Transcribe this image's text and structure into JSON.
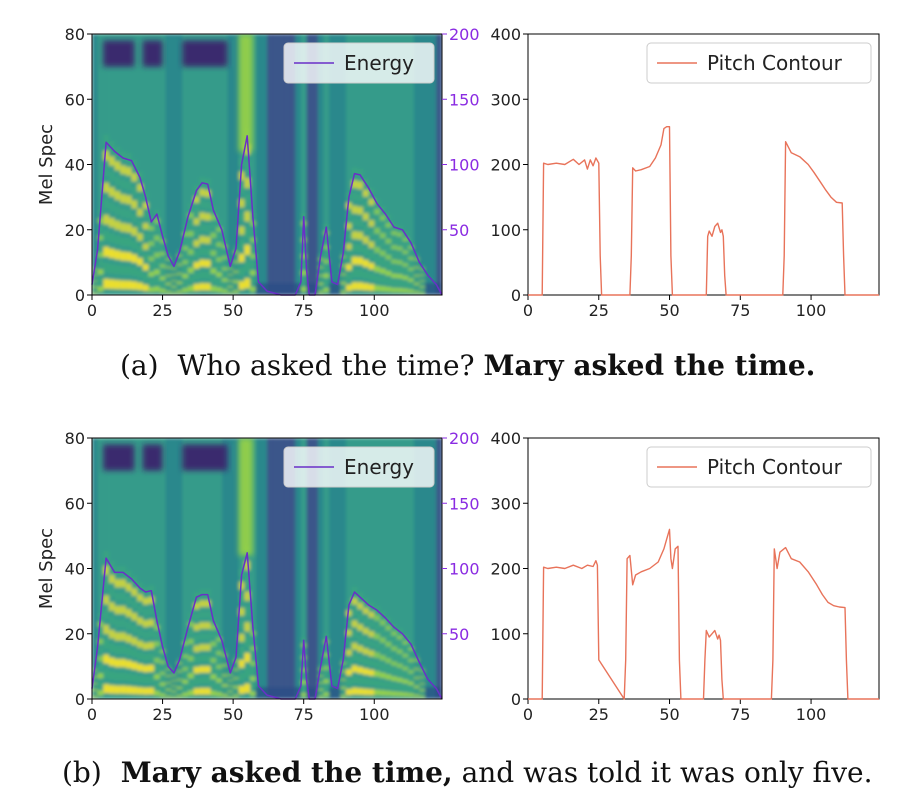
{
  "chart_data": [
    {
      "id": "a-mel",
      "type": "heatmap",
      "ylabel": "Mel Spec",
      "xlim": [
        0,
        124
      ],
      "ylim": [
        0,
        80
      ],
      "y2lim": [
        0,
        200
      ],
      "xticks": [
        "0",
        "25",
        "50",
        "75",
        "100"
      ],
      "yticks": [
        "0",
        "20",
        "40",
        "60",
        "80"
      ],
      "y2ticks": [
        "50",
        "100",
        "150",
        "200"
      ],
      "legend": "Energy",
      "legend_position": "top-right",
      "energy_color": "#6a2fc8",
      "series": [
        {
          "name": "Energy",
          "x": [
            0,
            2,
            5,
            8,
            11,
            14,
            17,
            19,
            21,
            23,
            25,
            27,
            29,
            31,
            34,
            37,
            39,
            41,
            43,
            46,
            49,
            51,
            53,
            55,
            57,
            59,
            62,
            67,
            72,
            74,
            75,
            76,
            77,
            79,
            81,
            83,
            85,
            87,
            89,
            91,
            93,
            95,
            98,
            101,
            104,
            107,
            110,
            113,
            116,
            119,
            122,
            124
          ],
          "y": [
            8,
            35,
            117,
            110,
            105,
            103,
            90,
            75,
            56,
            62,
            45,
            30,
            22,
            33,
            60,
            80,
            86,
            85,
            65,
            50,
            22,
            36,
            100,
            122,
            60,
            10,
            3,
            0,
            0,
            10,
            60,
            20,
            0,
            0,
            30,
            52,
            10,
            8,
            32,
            75,
            93,
            92,
            82,
            70,
            62,
            52,
            50,
            40,
            25,
            15,
            8,
            0
          ]
        }
      ]
    },
    {
      "id": "a-pitch",
      "type": "line",
      "xlim": [
        0,
        124
      ],
      "ylim": [
        0,
        400
      ],
      "xticks": [
        "0",
        "25",
        "50",
        "75",
        "100"
      ],
      "yticks": [
        "0",
        "100",
        "200",
        "300",
        "400"
      ],
      "legend": "Pitch Contour",
      "legend_position": "top-right",
      "color": "#e8735a",
      "series": [
        {
          "name": "Pitch Contour",
          "x": [
            0,
            5,
            5.5,
            7,
            10,
            13,
            16,
            18,
            20,
            21,
            22,
            23,
            24,
            25,
            25.5,
            26,
            36,
            36.5,
            37,
            38,
            40,
            43,
            45,
            47,
            48,
            49,
            50,
            50.5,
            51,
            63,
            63.5,
            64,
            65,
            66,
            67,
            68,
            68.5,
            69,
            69.5,
            70,
            90,
            90.5,
            91,
            93,
            96,
            99,
            101,
            103,
            105,
            107,
            109,
            111,
            111.5,
            112,
            124
          ],
          "y": [
            0,
            0,
            202,
            200,
            202,
            200,
            208,
            200,
            207,
            193,
            207,
            198,
            210,
            202,
            60,
            0,
            0,
            60,
            195,
            190,
            192,
            197,
            210,
            230,
            255,
            258,
            258,
            60,
            0,
            0,
            90,
            98,
            90,
            105,
            110,
            96,
            100,
            90,
            30,
            0,
            0,
            60,
            235,
            218,
            212,
            200,
            188,
            175,
            162,
            150,
            142,
            141,
            60,
            0,
            0
          ]
        }
      ]
    },
    {
      "id": "b-mel",
      "type": "heatmap",
      "ylabel": "Mel Spec",
      "xlim": [
        0,
        124
      ],
      "ylim": [
        0,
        80
      ],
      "y2lim": [
        0,
        200
      ],
      "xticks": [
        "0",
        "25",
        "50",
        "75",
        "100"
      ],
      "yticks": [
        "0",
        "20",
        "40",
        "60",
        "80"
      ],
      "y2ticks": [
        "50",
        "100",
        "150",
        "200"
      ],
      "legend": "Energy",
      "legend_position": "top-right",
      "energy_color": "#6a2fc8",
      "series": [
        {
          "name": "Energy",
          "x": [
            0,
            2,
            5,
            8,
            11,
            14,
            17,
            19,
            21,
            23,
            25,
            27,
            29,
            31,
            34,
            37,
            39,
            41,
            43,
            46,
            49,
            51,
            53,
            55,
            57,
            59,
            62,
            67,
            72,
            74,
            75,
            76,
            77,
            79,
            81,
            83,
            85,
            87,
            89,
            91,
            93,
            95,
            98,
            101,
            104,
            107,
            110,
            113,
            116,
            119,
            122,
            124
          ],
          "y": [
            8,
            40,
            108,
            97,
            97,
            92,
            85,
            82,
            83,
            60,
            40,
            25,
            20,
            30,
            55,
            78,
            80,
            80,
            60,
            45,
            20,
            32,
            95,
            112,
            55,
            10,
            3,
            0,
            0,
            10,
            45,
            15,
            0,
            0,
            25,
            48,
            10,
            8,
            30,
            72,
            82,
            78,
            72,
            68,
            62,
            55,
            50,
            42,
            28,
            15,
            8,
            0
          ]
        }
      ]
    },
    {
      "id": "b-pitch",
      "type": "line",
      "xlim": [
        0,
        124
      ],
      "ylim": [
        0,
        400
      ],
      "xticks": [
        "0",
        "25",
        "50",
        "75",
        "100"
      ],
      "yticks": [
        "0",
        "100",
        "200",
        "300",
        "400"
      ],
      "legend": "Pitch Contour",
      "legend_position": "top-right",
      "color": "#e8735a",
      "series": [
        {
          "name": "Pitch Contour",
          "x": [
            0,
            5,
            5.5,
            7,
            10,
            13,
            16,
            19,
            21,
            23,
            24,
            24.5,
            25,
            34,
            34.5,
            35,
            36,
            37,
            38,
            40,
            43,
            46,
            48,
            49,
            50,
            50.5,
            51,
            52,
            53,
            53.5,
            54,
            62,
            62.5,
            63,
            64,
            65,
            66,
            67,
            67.5,
            68,
            68.5,
            69,
            86,
            86.5,
            87,
            88,
            89,
            91,
            93,
            96,
            99,
            102,
            104,
            106,
            108,
            110,
            112,
            112.5,
            113,
            124
          ],
          "y": [
            0,
            0,
            202,
            200,
            202,
            200,
            205,
            200,
            205,
            203,
            212,
            205,
            60,
            0,
            60,
            215,
            220,
            175,
            190,
            195,
            200,
            210,
            230,
            245,
            260,
            215,
            200,
            230,
            234,
            60,
            0,
            0,
            60,
            105,
            95,
            100,
            105,
            92,
            98,
            90,
            30,
            0,
            0,
            60,
            230,
            200,
            225,
            232,
            215,
            210,
            195,
            175,
            160,
            148,
            143,
            141,
            140,
            60,
            0,
            0
          ]
        }
      ]
    }
  ],
  "captions": {
    "a": {
      "prefix": "(a)",
      "normal": "Who asked the time? ",
      "bold": "Mary asked the time."
    },
    "b": {
      "prefix": "(b)",
      "bold": "Mary asked the time,",
      "normal": " and was told it was only five."
    }
  }
}
